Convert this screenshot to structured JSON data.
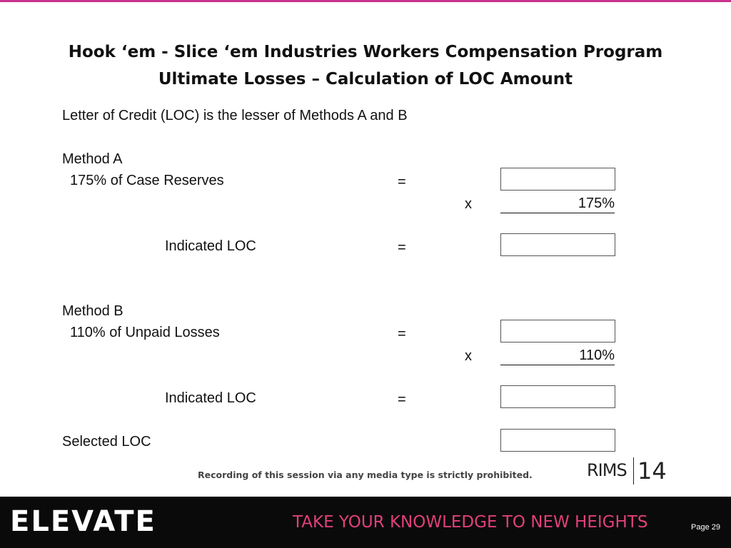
{
  "header": {
    "title_line1": "Hook ‘em - Slice ‘em Industries Workers  Compensation Program",
    "title_line2": "Ultimate Losses – Calculation of LOC Amount"
  },
  "intro": "Letter of Credit (LOC) is the lesser of Methods A and B",
  "method_a": {
    "label": "Method A",
    "item": "175% of Case Reserves",
    "equals": "=",
    "times": "x",
    "factor": "175%",
    "indicated": "Indicated LOC",
    "indicated_equals": "="
  },
  "method_b": {
    "label": "Method B",
    "item": "110% of Unpaid Losses",
    "equals": "=",
    "times": "x",
    "factor": "110%",
    "indicated": "Indicated LOC",
    "indicated_equals": "="
  },
  "selected": "Selected LOC",
  "footer": {
    "notice": "Recording of this session via any media type is strictly prohibited.",
    "logo": "RIMS",
    "logo_year": "14",
    "brand": "ELEVATE",
    "tagline": "TAKE YOUR KNOWLEDGE TO NEW HEIGHTS",
    "page": "Page 29"
  }
}
